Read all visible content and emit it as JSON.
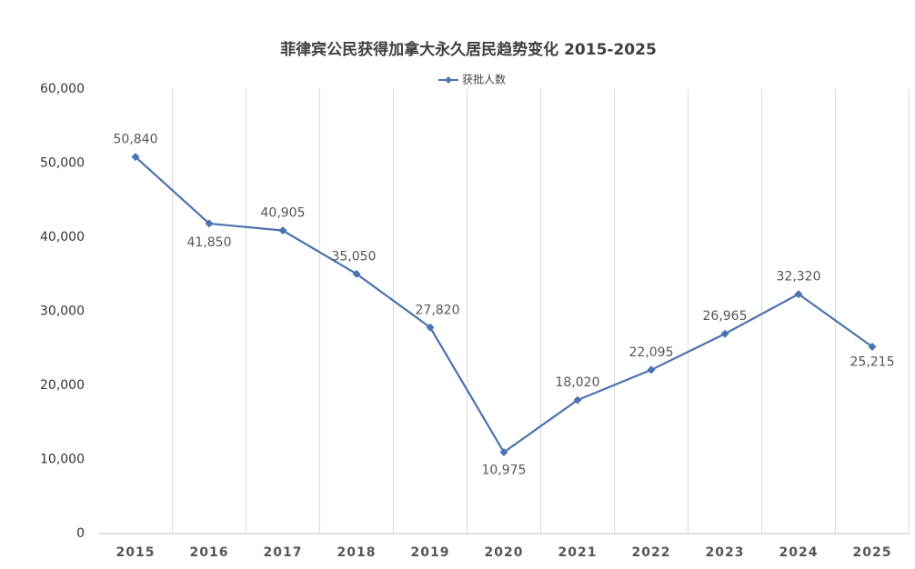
{
  "chart_data": {
    "type": "line",
    "title": "菲律宾公民获得加拿大永久居民趋势变化 2015-2025",
    "categories": [
      "2015",
      "2016",
      "2017",
      "2018",
      "2019",
      "2020",
      "2021",
      "2022",
      "2023",
      "2024",
      "2025"
    ],
    "series": [
      {
        "name": "获批人数",
        "color": "#4a72b0",
        "values": [
          50840,
          41850,
          40905,
          35050,
          27820,
          10975,
          18020,
          22095,
          26965,
          32320,
          25215
        ],
        "value_labels": [
          "50,840",
          "41,850",
          "40,905",
          "35,050",
          "27,820",
          "10,975",
          "18,020",
          "22,095",
          "26,965",
          "32,320",
          "25,215"
        ]
      }
    ],
    "ylim": [
      0,
      60000
    ],
    "yticks": [
      0,
      {
        "value": 10000,
        "label": "10,000"
      },
      {
        "value": 20000,
        "label": "20,000"
      },
      {
        "value": 30000,
        "label": "30,000"
      },
      {
        "value": 40000,
        "label": "40,000"
      },
      {
        "value": 50000,
        "label": "50,000"
      },
      {
        "value": 60000,
        "label": "60,000"
      }
    ],
    "grid": true,
    "legend": "top"
  }
}
